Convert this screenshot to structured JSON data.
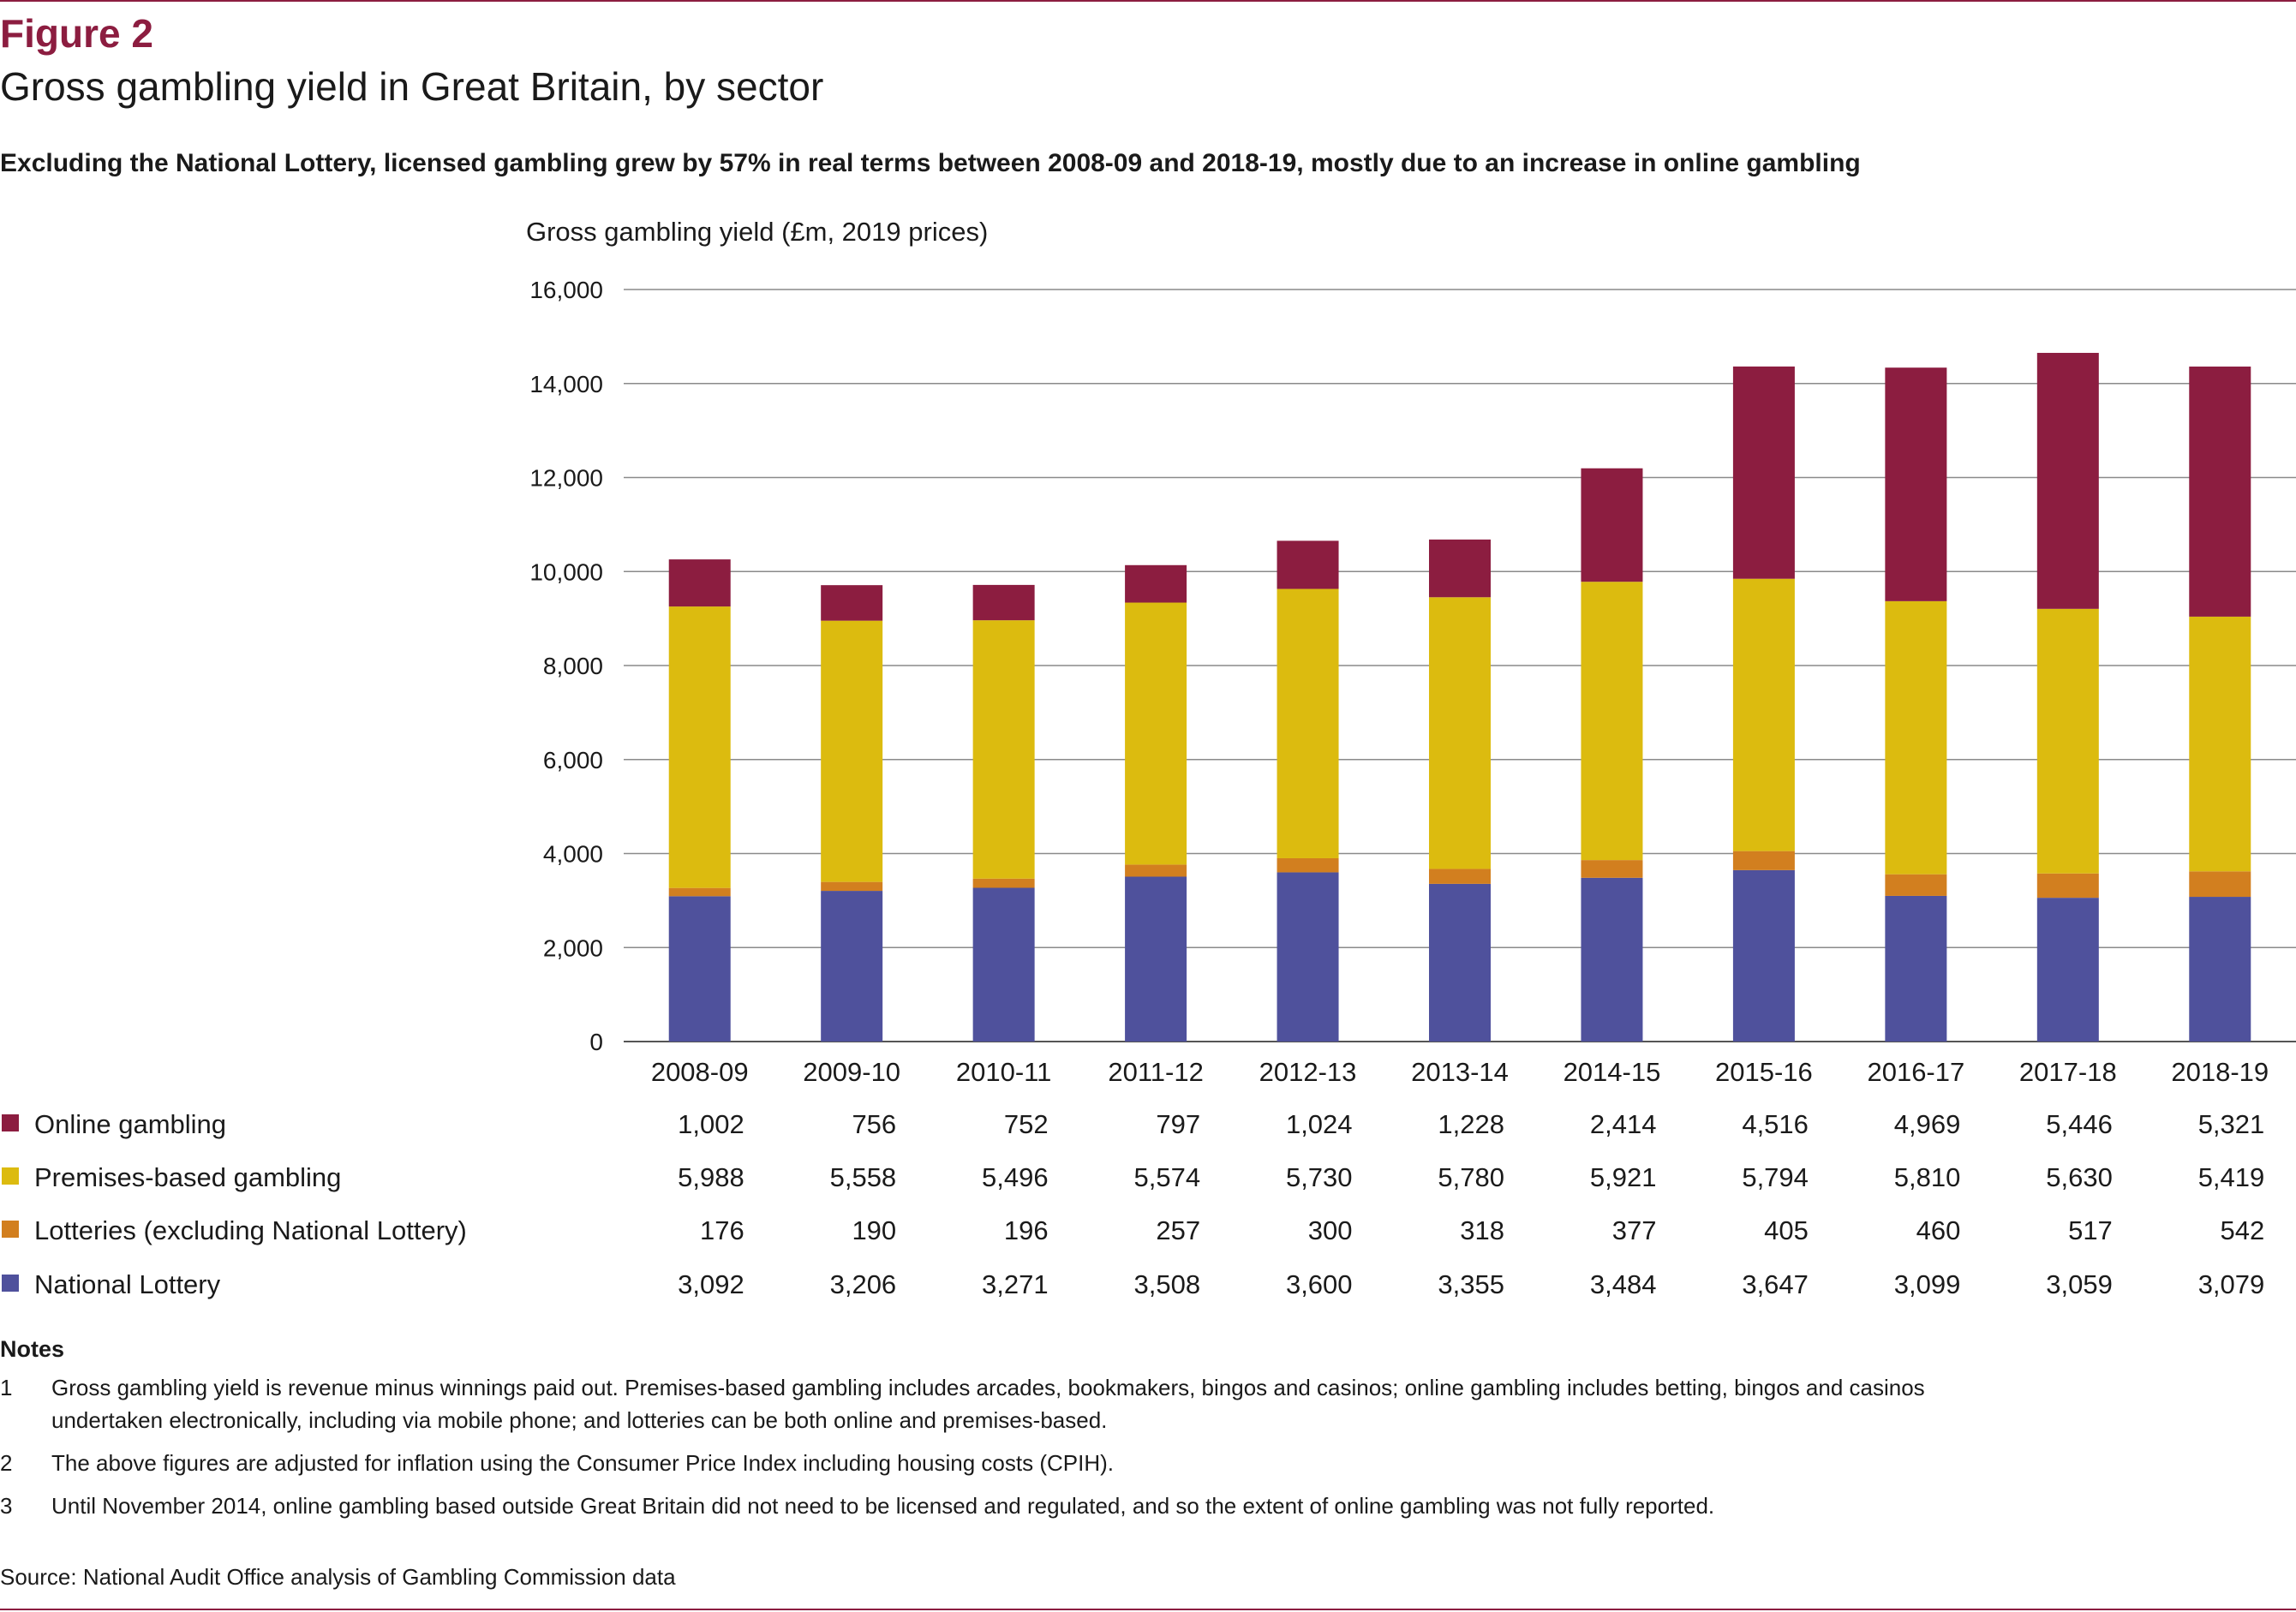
{
  "header": {
    "figure_label": "Figure 2",
    "title": "Gross gambling yield in Great Britain, by sector",
    "subtitle": "Excluding the National Lottery, licensed gambling grew by 57% in real terms between 2008-09 and 2018-19, mostly due to an increase in online gambling"
  },
  "chart_data": {
    "type": "bar",
    "stacked": true,
    "ylabel": "Gross gambling yield (£m, 2019 prices)",
    "xlabel": "",
    "ylim": [
      0,
      16000
    ],
    "yticks": [
      0,
      2000,
      4000,
      6000,
      8000,
      10000,
      12000,
      14000,
      16000
    ],
    "ytick_labels": [
      "0",
      "2,000",
      "4,000",
      "6,000",
      "8,000",
      "10,000",
      "12,000",
      "14,000",
      "16,000"
    ],
    "grid": true,
    "categories": [
      "2008-09",
      "2009-10",
      "2010-11",
      "2011-12",
      "2012-13",
      "2013-14",
      "2014-15",
      "2015-16",
      "2016-17",
      "2017-18",
      "2018-19"
    ],
    "series": [
      {
        "name": "National Lottery",
        "color": "#4f519c",
        "values": [
          3092,
          3206,
          3271,
          3508,
          3600,
          3355,
          3484,
          3647,
          3099,
          3059,
          3079
        ],
        "labels": [
          "3,092",
          "3,206",
          "3,271",
          "3,508",
          "3,600",
          "3,355",
          "3,484",
          "3,647",
          "3,099",
          "3,059",
          "3,079"
        ]
      },
      {
        "name": "Lotteries (excluding National Lottery)",
        "color": "#d27f1f",
        "values": [
          176,
          190,
          196,
          257,
          300,
          318,
          377,
          405,
          460,
          517,
          542
        ],
        "labels": [
          "176",
          "190",
          "196",
          "257",
          "300",
          "318",
          "377",
          "405",
          "460",
          "517",
          "542"
        ]
      },
      {
        "name": "Premises-based gambling",
        "color": "#dcbb0f",
        "values": [
          5988,
          5558,
          5496,
          5574,
          5730,
          5780,
          5921,
          5794,
          5810,
          5630,
          5419
        ],
        "labels": [
          "5,988",
          "5,558",
          "5,496",
          "5,574",
          "5,730",
          "5,780",
          "5,921",
          "5,794",
          "5,810",
          "5,630",
          "5,419"
        ]
      },
      {
        "name": "Online gambling",
        "color": "#8c1d40",
        "values": [
          1002,
          756,
          752,
          797,
          1024,
          1228,
          2414,
          4516,
          4969,
          5446,
          5321
        ],
        "labels": [
          "1,002",
          "756",
          "752",
          "797",
          "1,024",
          "1,228",
          "2,414",
          "4,516",
          "4,969",
          "5,446",
          "5,321"
        ]
      }
    ],
    "table_row_order": [
      "Online gambling",
      "Premises-based gambling",
      "Lotteries (excluding National Lottery)",
      "National Lottery"
    ]
  },
  "notes": {
    "heading": "Notes",
    "items": [
      {
        "num": "1",
        "text": "Gross gambling yield is revenue minus winnings paid out. Premises-based gambling includes arcades, bookmakers, bingos and casinos; online gambling includes betting, bingos and casinos undertaken electronically, including via mobile phone; and lotteries can be both online and premises-based."
      },
      {
        "num": "2",
        "text": "The above figures are adjusted for inflation using the Consumer Price Index including housing costs (CPIH)."
      },
      {
        "num": "3",
        "text": "Until November 2014, online gambling based outside Great Britain did not need to be licensed and regulated, and so the extent of online gambling was not fully reported."
      }
    ]
  },
  "source": "Source: National Audit Office analysis of Gambling Commission data"
}
